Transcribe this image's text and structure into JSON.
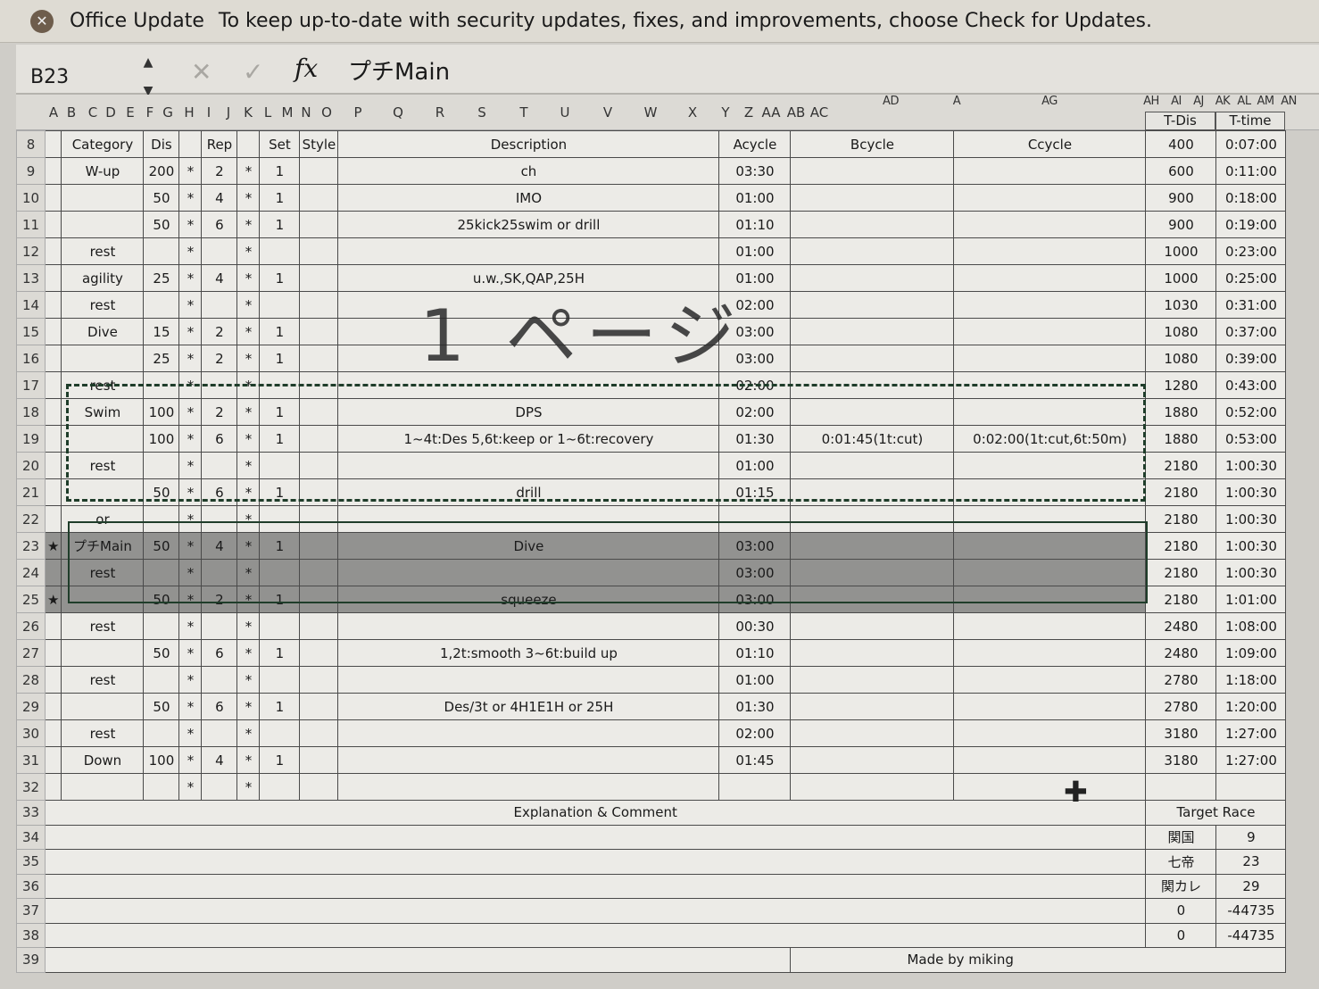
{
  "banner": {
    "title": "Office Update",
    "message": "To keep up-to-date with security updates, fixes, and improvements, choose Check for Updates."
  },
  "formula_bar": {
    "name_box": "B23",
    "content": "プチMain",
    "fx": "fx",
    "cancel": "✕",
    "enter": "✓"
  },
  "column_letters": [
    "A",
    "B",
    "C",
    "D",
    "E",
    "F",
    "G",
    "H",
    "I",
    "J",
    "K",
    "L",
    "M",
    "N",
    "O",
    "P",
    "Q",
    "R",
    "S",
    "T",
    "U",
    "V",
    "W",
    "X",
    "Y",
    "Z",
    "AA",
    "AB",
    "AC",
    "AD",
    "A",
    "AG",
    "AH",
    "AI",
    "AJ",
    "AK",
    "AL",
    "AM",
    "AN"
  ],
  "header": {
    "row": "8",
    "category": "Category",
    "dis": "Dis",
    "rep": "Rep",
    "set": "Set",
    "style": "Style",
    "description": "Description",
    "acycle": "Acycle",
    "bcycle": "Bcycle",
    "ccycle": "Ccycle",
    "tdis": "T-Dis",
    "ttime": "T-time"
  },
  "rows": [
    {
      "n": "8",
      "mark": "",
      "cat": "",
      "dis": "",
      "s1": "",
      "rep": "",
      "s2": "",
      "set": "",
      "style": "",
      "desc": "",
      "a": "",
      "b": "",
      "c": "",
      "tdis": "400",
      "ttime": "0:07:00"
    },
    {
      "n": "9",
      "mark": "",
      "cat": "W-up",
      "dis": "200",
      "s1": "*",
      "rep": "2",
      "s2": "*",
      "set": "1",
      "style": "",
      "desc": "ch",
      "a": "03:30",
      "b": "",
      "c": "",
      "tdis": "600",
      "ttime": "0:11:00"
    },
    {
      "n": "10",
      "mark": "",
      "cat": "",
      "dis": "50",
      "s1": "*",
      "rep": "4",
      "s2": "*",
      "set": "1",
      "style": "",
      "desc": "IMO",
      "a": "01:00",
      "b": "",
      "c": "",
      "tdis": "900",
      "ttime": "0:18:00"
    },
    {
      "n": "11",
      "mark": "",
      "cat": "",
      "dis": "50",
      "s1": "*",
      "rep": "6",
      "s2": "*",
      "set": "1",
      "style": "",
      "desc": "25kick25swim or drill",
      "a": "01:10",
      "b": "",
      "c": "",
      "tdis": "900",
      "ttime": "0:19:00"
    },
    {
      "n": "12",
      "mark": "",
      "cat": "rest",
      "dis": "",
      "s1": "*",
      "rep": "",
      "s2": "*",
      "set": "",
      "style": "",
      "desc": "",
      "a": "01:00",
      "b": "",
      "c": "",
      "tdis": "1000",
      "ttime": "0:23:00"
    },
    {
      "n": "13",
      "mark": "",
      "cat": "agility",
      "dis": "25",
      "s1": "*",
      "rep": "4",
      "s2": "*",
      "set": "1",
      "style": "",
      "desc": "u.w.,SK,QAP,25H",
      "a": "01:00",
      "b": "",
      "c": "",
      "tdis": "1000",
      "ttime": "0:25:00"
    },
    {
      "n": "14",
      "mark": "",
      "cat": "rest",
      "dis": "",
      "s1": "*",
      "rep": "",
      "s2": "*",
      "set": "",
      "style": "",
      "desc": "",
      "a": "02:00",
      "b": "",
      "c": "",
      "tdis": "1030",
      "ttime": "0:31:00"
    },
    {
      "n": "15",
      "mark": "",
      "cat": "Dive",
      "dis": "15",
      "s1": "*",
      "rep": "2",
      "s2": "*",
      "set": "1",
      "style": "",
      "desc": "",
      "a": "03:00",
      "b": "",
      "c": "",
      "tdis": "1080",
      "ttime": "0:37:00"
    },
    {
      "n": "16",
      "mark": "",
      "cat": "",
      "dis": "25",
      "s1": "*",
      "rep": "2",
      "s2": "*",
      "set": "1",
      "style": "",
      "desc": "",
      "a": "03:00",
      "b": "",
      "c": "",
      "tdis": "1080",
      "ttime": "0:39:00"
    },
    {
      "n": "17",
      "mark": "",
      "cat": "rest",
      "dis": "",
      "s1": "*",
      "rep": "",
      "s2": "*",
      "set": "",
      "style": "",
      "desc": "",
      "a": "02:00",
      "b": "",
      "c": "",
      "tdis": "1280",
      "ttime": "0:43:00"
    },
    {
      "n": "18",
      "mark": "",
      "cat": "Swim",
      "dis": "100",
      "s1": "*",
      "rep": "2",
      "s2": "*",
      "set": "1",
      "style": "",
      "desc": "DPS",
      "a": "02:00",
      "b": "",
      "c": "",
      "tdis": "1880",
      "ttime": "0:52:00"
    },
    {
      "n": "19",
      "mark": "",
      "cat": "",
      "dis": "100",
      "s1": "*",
      "rep": "6",
      "s2": "*",
      "set": "1",
      "style": "",
      "desc": "1~4t:Des 5,6t:keep or 1~6t:recovery",
      "a": "01:30",
      "b": "0:01:45(1t:cut)",
      "c": "0:02:00(1t:cut,6t:50m)",
      "tdis": "1880",
      "ttime": "0:53:00"
    },
    {
      "n": "20",
      "mark": "",
      "cat": "rest",
      "dis": "",
      "s1": "*",
      "rep": "",
      "s2": "*",
      "set": "",
      "style": "",
      "desc": "",
      "a": "01:00",
      "b": "",
      "c": "",
      "tdis": "2180",
      "ttime": "1:00:30"
    },
    {
      "n": "21",
      "mark": "",
      "cat": "",
      "dis": "50",
      "s1": "*",
      "rep": "6",
      "s2": "*",
      "set": "1",
      "style": "",
      "desc": "drill",
      "a": "01:15",
      "b": "",
      "c": "",
      "tdis": "2180",
      "ttime": "1:00:30"
    },
    {
      "n": "22",
      "mark": "",
      "cat": "or",
      "dis": "",
      "s1": "*",
      "rep": "",
      "s2": "*",
      "set": "",
      "style": "",
      "desc": "",
      "a": "",
      "b": "",
      "c": "",
      "tdis": "2180",
      "ttime": "1:00:30"
    },
    {
      "n": "23",
      "mark": "★",
      "cat": "プチMain",
      "dis": "50",
      "s1": "*",
      "rep": "4",
      "s2": "*",
      "set": "1",
      "style": "",
      "desc": "Dive",
      "a": "03:00",
      "b": "",
      "c": "",
      "tdis": "2180",
      "ttime": "1:00:30"
    },
    {
      "n": "24",
      "mark": "",
      "cat": "rest",
      "dis": "",
      "s1": "*",
      "rep": "",
      "s2": "*",
      "set": "",
      "style": "",
      "desc": "",
      "a": "03:00",
      "b": "",
      "c": "",
      "tdis": "2180",
      "ttime": "1:00:30"
    },
    {
      "n": "25",
      "mark": "★",
      "cat": "",
      "dis": "50",
      "s1": "*",
      "rep": "2",
      "s2": "*",
      "set": "1",
      "style": "",
      "desc": "squeeze",
      "a": "03:00",
      "b": "",
      "c": "",
      "tdis": "2180",
      "ttime": "1:01:00"
    },
    {
      "n": "26",
      "mark": "",
      "cat": "rest",
      "dis": "",
      "s1": "*",
      "rep": "",
      "s2": "*",
      "set": "",
      "style": "",
      "desc": "",
      "a": "00:30",
      "b": "",
      "c": "",
      "tdis": "2480",
      "ttime": "1:08:00"
    },
    {
      "n": "27",
      "mark": "",
      "cat": "",
      "dis": "50",
      "s1": "*",
      "rep": "6",
      "s2": "*",
      "set": "1",
      "style": "",
      "desc": "1,2t:smooth 3~6t:build up",
      "a": "01:10",
      "b": "",
      "c": "",
      "tdis": "2480",
      "ttime": "1:09:00"
    },
    {
      "n": "28",
      "mark": "",
      "cat": "rest",
      "dis": "",
      "s1": "*",
      "rep": "",
      "s2": "*",
      "set": "",
      "style": "",
      "desc": "",
      "a": "01:00",
      "b": "",
      "c": "",
      "tdis": "2780",
      "ttime": "1:18:00"
    },
    {
      "n": "29",
      "mark": "",
      "cat": "",
      "dis": "50",
      "s1": "*",
      "rep": "6",
      "s2": "*",
      "set": "1",
      "style": "",
      "desc": "Des/3t or 4H1E1H or 25H",
      "a": "01:30",
      "b": "",
      "c": "",
      "tdis": "2780",
      "ttime": "1:20:00"
    },
    {
      "n": "30",
      "mark": "",
      "cat": "rest",
      "dis": "",
      "s1": "*",
      "rep": "",
      "s2": "*",
      "set": "",
      "style": "",
      "desc": "",
      "a": "02:00",
      "b": "",
      "c": "",
      "tdis": "3180",
      "ttime": "1:27:00"
    },
    {
      "n": "31",
      "mark": "",
      "cat": "Down",
      "dis": "100",
      "s1": "*",
      "rep": "4",
      "s2": "*",
      "set": "1",
      "style": "",
      "desc": "",
      "a": "01:45",
      "b": "",
      "c": "",
      "tdis": "3180",
      "ttime": "1:27:00"
    },
    {
      "n": "32",
      "mark": "",
      "cat": "",
      "dis": "",
      "s1": "*",
      "rep": "",
      "s2": "*",
      "set": "",
      "style": "",
      "desc": "",
      "a": "",
      "b": "",
      "c": "",
      "tdis": "",
      "ttime": ""
    }
  ],
  "selected_rows": [
    "23",
    "24",
    "25"
  ],
  "comment": {
    "title": "Explanation & Comment"
  },
  "target_race": {
    "title": "Target Race",
    "rows": [
      [
        "関国",
        "9"
      ],
      [
        "七帝",
        "23"
      ],
      [
        "関カレ",
        "29"
      ],
      [
        "0",
        "-44735"
      ],
      [
        "0",
        "-44735"
      ]
    ]
  },
  "bottom_rows": [
    "33",
    "34",
    "35",
    "36",
    "37",
    "38",
    "39"
  ],
  "credit": "Made by miking",
  "page_label": "1 ページ"
}
